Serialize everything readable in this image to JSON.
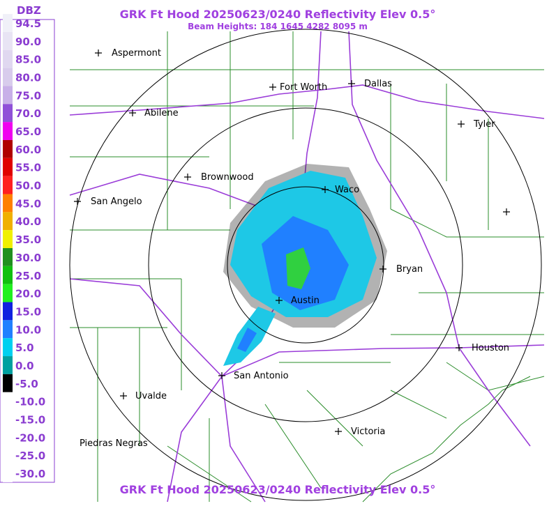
{
  "header": {
    "title": "GRK Ft Hood 20250623/0240 Reflectivity Elev 0.5°",
    "subtitle": "Beam Heights: 184 1645 4282 8095 m"
  },
  "footer": {
    "title": "GRK Ft Hood 20250623/0240 Reflectivity Elev 0.5°"
  },
  "legend": {
    "unit": "DBZ",
    "entries": [
      {
        "label": "94.5",
        "color": "#f0f0f8"
      },
      {
        "label": "90.0",
        "color": "#e8e4f4"
      },
      {
        "label": "85.0",
        "color": "#e0d8f0"
      },
      {
        "label": "80.0",
        "color": "#d8ccec"
      },
      {
        "label": "75.0",
        "color": "#c8b0e8"
      },
      {
        "label": "70.0",
        "color": "#9050d8"
      },
      {
        "label": "65.0",
        "color": "#f000f0"
      },
      {
        "label": "60.0",
        "color": "#b00000"
      },
      {
        "label": "55.0",
        "color": "#e00000"
      },
      {
        "label": "50.0",
        "color": "#ff2020"
      },
      {
        "label": "45.0",
        "color": "#ff8000"
      },
      {
        "label": "40.0",
        "color": "#f0b000"
      },
      {
        "label": "35.0",
        "color": "#f0f000"
      },
      {
        "label": "30.0",
        "color": "#209020"
      },
      {
        "label": "25.0",
        "color": "#10c010"
      },
      {
        "label": "20.0",
        "color": "#20f020"
      },
      {
        "label": "15.0",
        "color": "#1020e0"
      },
      {
        "label": "10.0",
        "color": "#2080ff"
      },
      {
        "label": "5.0",
        "color": "#00d0f0"
      },
      {
        "label": "0.0",
        "color": "#00a0a0"
      },
      {
        "label": "-5.0",
        "color": "#000000"
      },
      {
        "label": "-10.0",
        "color": "#ffffff"
      },
      {
        "label": "-15.0",
        "color": "#ffffff"
      },
      {
        "label": "-20.0",
        "color": "#ffffff"
      },
      {
        "label": "-25.0",
        "color": "#ffffff"
      },
      {
        "label": "-30.0",
        "color": "#ffffff"
      }
    ]
  },
  "cities": [
    "Aspermont",
    "Fort Worth",
    "Dallas",
    "Abilene",
    "Tyler",
    "Brownwood",
    "Waco",
    "San Angelo",
    "Bryan",
    "Austin",
    "Houston",
    "San Antonio",
    "Uvalde",
    "Victoria",
    "Piedras Negras"
  ]
}
